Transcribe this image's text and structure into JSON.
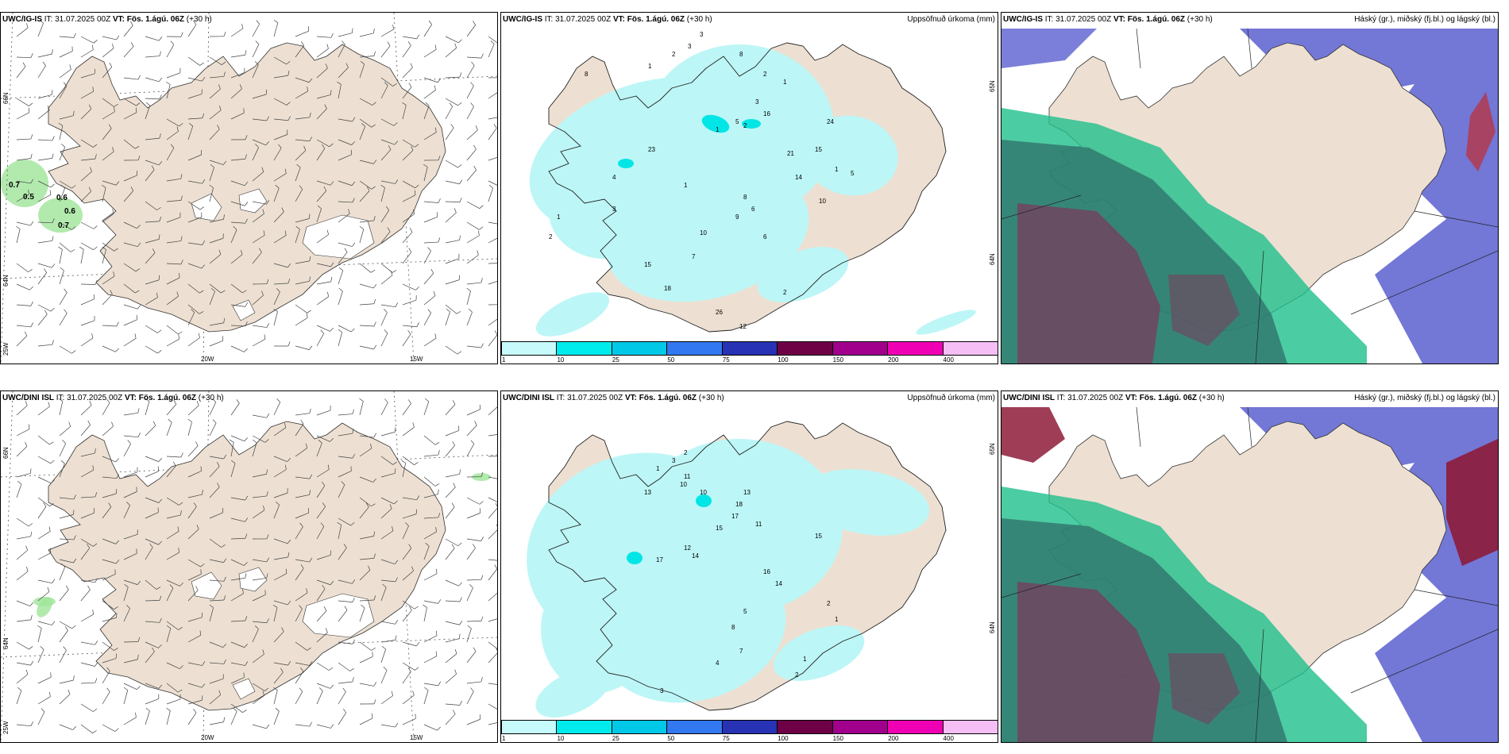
{
  "colors": {
    "land": "#ede0d2",
    "sea": "#ffffff",
    "precip_light": "#bdf6f6",
    "precip_mid": "#00e5e5",
    "cloud_high": "#5a5fcf",
    "cloud_mid": "#1fbf8c",
    "cloud_low": "#8a2a55",
    "wind_green": "#9fe59a"
  },
  "panels": [
    {
      "id": "ig-wind",
      "model": "UWC/IG-IS",
      "it_label": "IT:",
      "it_value": "31.07.2025 00Z",
      "vt_label": "VT:",
      "vt_value": "Fös. 1.ágú. 06Z",
      "lead": "(+30 h)",
      "right_title": "",
      "lat_labels": [
        "66N",
        "64N"
      ],
      "lon_labels": [
        "25W",
        "20W",
        "15W"
      ],
      "values": [
        "0.7",
        "0.5",
        "0.6",
        "0.6",
        "0.7"
      ]
    },
    {
      "id": "ig-precip",
      "model": "UWC/IG-IS",
      "it_label": "IT:",
      "it_value": "31.07.2025 00Z",
      "vt_label": "VT:",
      "vt_value": "Fös. 1.ágú. 06Z",
      "lead": "(+30 h)",
      "right_title": "Uppsöfnuð úrkoma (mm)",
      "lat_labels": [
        "65N",
        "64N"
      ],
      "values": [
        "3",
        "3",
        "2",
        "1",
        "8",
        "8",
        "2",
        "1",
        "1",
        "2",
        "5",
        "3",
        "16",
        "23",
        "24",
        "15",
        "21",
        "14",
        "6",
        "9",
        "8",
        "10",
        "7",
        "6",
        "26",
        "12",
        "4",
        "15",
        "18",
        "2",
        "1",
        "3",
        "1",
        "10",
        "1",
        "5",
        "2"
      ]
    },
    {
      "id": "ig-cloud",
      "model": "UWC/IG-IS",
      "it_label": "IT:",
      "it_value": "31.07.2025 00Z",
      "vt_label": "VT:",
      "vt_value": "Fös. 1.ágú. 06Z",
      "lead": "(+30 h)",
      "right_title": "Háský (gr.), miðský (fj.bl.) og lágský (bl.)"
    },
    {
      "id": "dini-wind",
      "model": "UWC/DINI ISL",
      "it_label": "IT:",
      "it_value": "31.07.2025 00Z",
      "vt_label": "VT:",
      "vt_value": "Fös. 1.ágú. 06Z",
      "lead": "(+30 h)",
      "right_title": "",
      "lat_labels": [
        "66N",
        "64N"
      ],
      "lon_labels": [
        "25W",
        "20W",
        "15W"
      ]
    },
    {
      "id": "dini-precip",
      "model": "UWC/DINI ISL",
      "it_label": "IT:",
      "it_value": "31.07.2025 00Z",
      "vt_label": "VT:",
      "vt_value": "Fös. 1.ágú. 06Z",
      "lead": "(+30 h)",
      "right_title": "Uppsöfnuð úrkoma (mm)",
      "lat_labels": [
        "65N",
        "64N"
      ],
      "values": [
        "3",
        "2",
        "1",
        "10",
        "11",
        "13",
        "10",
        "13",
        "18",
        "17",
        "15",
        "12",
        "14",
        "17",
        "11",
        "15",
        "16",
        "14",
        "5",
        "8",
        "7",
        "4",
        "3",
        "2",
        "1",
        "2",
        "2",
        "1"
      ]
    },
    {
      "id": "dini-cloud",
      "model": "UWC/DINI ISL",
      "it_label": "IT:",
      "it_value": "31.07.2025 00Z",
      "vt_label": "VT:",
      "vt_value": "Fös. 1.ágú. 06Z",
      "lead": "(+30 h)",
      "right_title": "Háský (gr.), miðský (fj.bl.) og lágský (bl.)"
    }
  ],
  "colorbar": {
    "ticks": [
      "1",
      "10",
      "25",
      "50",
      "75",
      "100",
      "150",
      "200",
      "400"
    ],
    "colors": [
      "#c7fbfb",
      "#00ebeb",
      "#00c8e6",
      "#3278f0",
      "#2832b4",
      "#6e0046",
      "#a0008c",
      "#f000b4",
      "#f5bef5"
    ]
  }
}
